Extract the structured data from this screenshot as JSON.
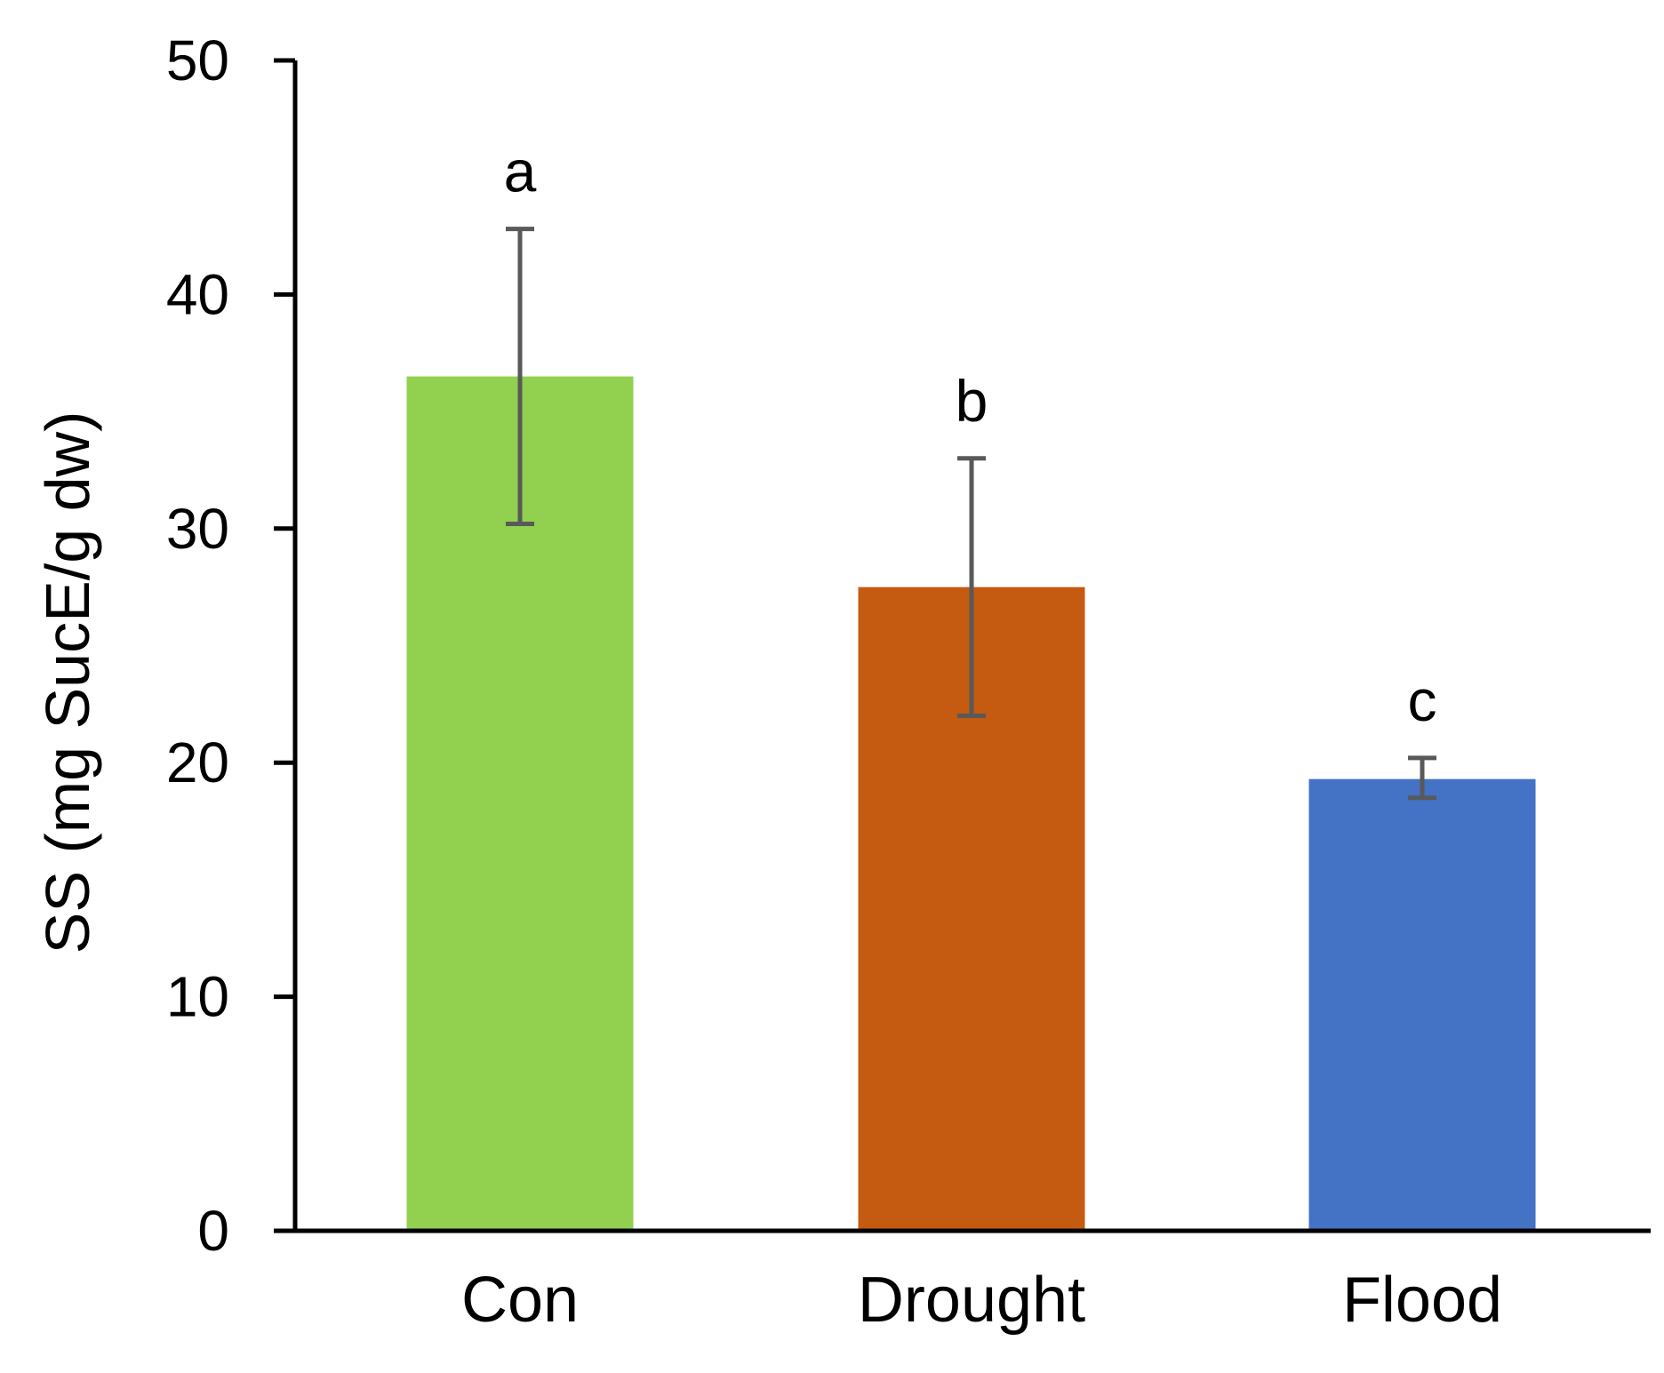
{
  "chart_data": {
    "type": "bar",
    "title": "",
    "xlabel": "",
    "ylabel": "SS (mg SucE/g dw)",
    "ylim": [
      0,
      50
    ],
    "yticks": [
      0,
      10,
      20,
      30,
      40,
      50
    ],
    "ytick_labels": [
      "0",
      "10",
      "20",
      "30",
      "40",
      "50"
    ],
    "grid": false,
    "categories": [
      "Con",
      "Drought",
      "Flood"
    ],
    "values": [
      36.5,
      27.5,
      19.3
    ],
    "error_upper": [
      42.8,
      33.0,
      20.2
    ],
    "error_lower": [
      30.2,
      22.0,
      18.5
    ],
    "significance_letters": [
      "a",
      "b",
      "c"
    ],
    "colors": [
      "#92D050",
      "#C55A11",
      "#4472C4"
    ],
    "error_bar_color": "#595959",
    "axis_color": "#000000"
  }
}
